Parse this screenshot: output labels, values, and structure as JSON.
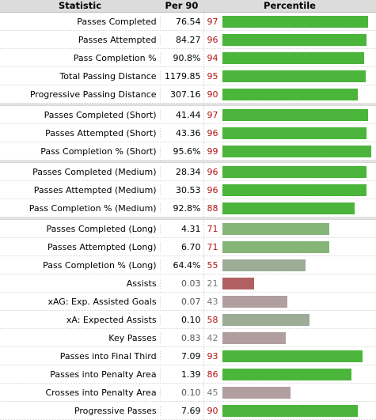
{
  "headers": {
    "statistic": "Statistic",
    "per90": "Per 90",
    "percentile": "Percentile"
  },
  "colors": {
    "green_strong": "#4ab53a",
    "green_mid": "#5cb04d",
    "green_soft": "#86b579",
    "grey_green": "#9bad96",
    "grey_mauve": "#b09ea0",
    "red": "#b06060",
    "pct_red": "#b31515",
    "pct_grey": "#777777",
    "value_grey": "#555555"
  },
  "groups": [
    [
      {
        "stat": "Passes Completed",
        "per90": "76.54",
        "pct": "97"
      },
      {
        "stat": "Passes Attempted",
        "per90": "84.27",
        "pct": "96"
      },
      {
        "stat": "Pass Completion %",
        "per90": "90.8%",
        "pct": "94"
      },
      {
        "stat": "Total Passing Distance",
        "per90": "1179.85",
        "pct": "95"
      },
      {
        "stat": "Progressive Passing Distance",
        "per90": "307.16",
        "pct": "90"
      }
    ],
    [
      {
        "stat": "Passes Completed (Short)",
        "per90": "41.44",
        "pct": "97"
      },
      {
        "stat": "Passes Attempted (Short)",
        "per90": "43.36",
        "pct": "96"
      },
      {
        "stat": "Pass Completion % (Short)",
        "per90": "95.6%",
        "pct": "99"
      }
    ],
    [
      {
        "stat": "Passes Completed (Medium)",
        "per90": "28.34",
        "pct": "96"
      },
      {
        "stat": "Passes Attempted (Medium)",
        "per90": "30.53",
        "pct": "96"
      },
      {
        "stat": "Pass Completion % (Medium)",
        "per90": "92.8%",
        "pct": "88"
      }
    ],
    [
      {
        "stat": "Passes Completed (Long)",
        "per90": "4.31",
        "pct": "71"
      },
      {
        "stat": "Passes Attempted (Long)",
        "per90": "6.70",
        "pct": "71"
      },
      {
        "stat": "Pass Completion % (Long)",
        "per90": "64.4%",
        "pct": "55"
      },
      {
        "stat": "Assists",
        "per90": "0.03",
        "pct": "21"
      },
      {
        "stat": "xAG: Exp. Assisted Goals",
        "per90": "0.07",
        "pct": "43"
      },
      {
        "stat": "xA: Expected Assists",
        "per90": "0.10",
        "pct": "58"
      },
      {
        "stat": "Key Passes",
        "per90": "0.83",
        "pct": "42"
      },
      {
        "stat": "Passes into Final Third",
        "per90": "7.09",
        "pct": "93"
      },
      {
        "stat": "Passes into Penalty Area",
        "per90": "1.39",
        "pct": "86"
      },
      {
        "stat": "Crosses into Penalty Area",
        "per90": "0.10",
        "pct": "45"
      },
      {
        "stat": "Progressive Passes",
        "per90": "7.69",
        "pct": "90"
      }
    ]
  ]
}
